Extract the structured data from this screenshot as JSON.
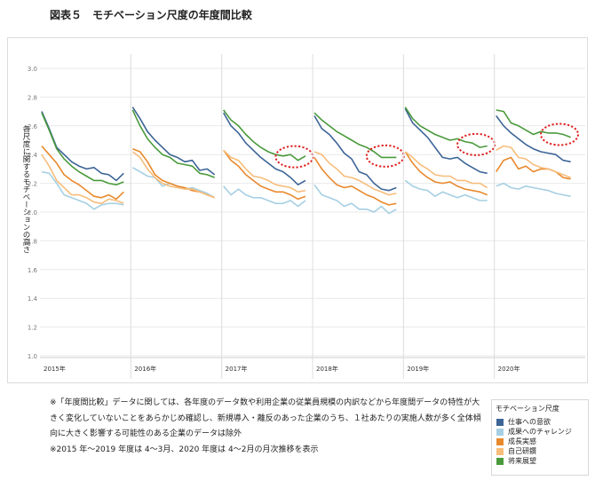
{
  "page": {
    "title": "図表５　モチベーション尺度の年度間比較",
    "notes": [
      "※「年度間比較」データに関しては、各年度のデータ数や利用企業の従業員規模の内訳などから年度間データの特性が大きく変化していないことをあらかじめ確認し、新規導入・離反のあった企業のうち、１社あたりの実施人数が多く全体傾向に大きく影響する可能性のある企業のデータは除外",
      "※2015 年～2019 年度は 4～3月、2020 年度は 4～2月の月次推移を表示"
    ]
  },
  "colors": {
    "仕事への意欲": "#3c6496",
    "成果へのチャレンジ": "#a6cfe3",
    "成長実感": "#e8892d",
    "自己研鑽": "#f7bd7b",
    "将来展望": "#4a9a3c",
    "highlight": "#e02020",
    "grid": "#e9e9e9"
  },
  "legend": {
    "title": "モチベーション尺度",
    "items": [
      "仕事への意欲",
      "成果へのチャレンジ",
      "成長実感",
      "自己研鑽",
      "将来展望"
    ]
  },
  "chart_data": {
    "type": "line",
    "ylabel": "各尺度に関するモチベーションの高さ",
    "ylim": [
      1.0,
      3.0
    ],
    "yticks": [
      "1.0",
      "1.2",
      "1.4",
      "1.6",
      "1.8",
      "2.0",
      "2.2",
      "2.4",
      "2.6",
      "2.8",
      "3.0"
    ],
    "grid": true,
    "legend_position": "bottom-right",
    "x_unit": "month index within fiscal year (1 = April)",
    "panels": [
      {
        "label": "2015年",
        "highlight": false,
        "series": [
          {
            "name": "仕事への意欲",
            "values": [
              2.7,
              2.58,
              2.45,
              2.4,
              2.35,
              2.32,
              2.3,
              2.31,
              2.27,
              2.26,
              2.22,
              2.27
            ]
          },
          {
            "name": "成果へのチャレンジ",
            "values": [
              2.28,
              2.27,
              2.2,
              2.12,
              2.1,
              2.08,
              2.06,
              2.02,
              2.05,
              2.06,
              2.06,
              2.05
            ]
          },
          {
            "name": "成長実感",
            "values": [
              2.46,
              2.4,
              2.34,
              2.26,
              2.22,
              2.19,
              2.15,
              2.11,
              2.1,
              2.12,
              2.09,
              2.14
            ]
          },
          {
            "name": "自己研鑽",
            "values": [
              2.4,
              2.32,
              2.22,
              2.17,
              2.12,
              2.12,
              2.1,
              2.07,
              2.06,
              2.09,
              2.08,
              2.06
            ]
          },
          {
            "name": "将来展望",
            "values": [
              2.69,
              2.57,
              2.44,
              2.37,
              2.32,
              2.28,
              2.25,
              2.22,
              2.22,
              2.2,
              2.19,
              2.21
            ]
          }
        ]
      },
      {
        "label": "2016年",
        "highlight": false,
        "series": [
          {
            "name": "仕事への意欲",
            "values": [
              2.73,
              2.65,
              2.56,
              2.5,
              2.45,
              2.4,
              2.38,
              2.35,
              2.36,
              2.29,
              2.3,
              2.26
            ]
          },
          {
            "name": "成果へのチャレンジ",
            "values": [
              2.31,
              2.28,
              2.25,
              2.24,
              2.18,
              2.2,
              2.18,
              2.16,
              2.17,
              2.15,
              2.13,
              2.1
            ]
          },
          {
            "name": "成長実感",
            "values": [
              2.44,
              2.42,
              2.35,
              2.26,
              2.22,
              2.2,
              2.18,
              2.17,
              2.15,
              2.14,
              2.12,
              2.1
            ]
          },
          {
            "name": "自己研鑽",
            "values": [
              2.42,
              2.38,
              2.3,
              2.24,
              2.2,
              2.18,
              2.17,
              2.16,
              2.16,
              2.14,
              2.12,
              2.1
            ]
          },
          {
            "name": "将来展望",
            "values": [
              2.71,
              2.6,
              2.51,
              2.45,
              2.4,
              2.38,
              2.34,
              2.33,
              2.32,
              2.27,
              2.26,
              2.24
            ]
          }
        ]
      },
      {
        "label": "2017年",
        "highlight": true,
        "series": [
          {
            "name": "仕事への意欲",
            "values": [
              2.69,
              2.6,
              2.55,
              2.48,
              2.43,
              2.38,
              2.34,
              2.3,
              2.28,
              2.24,
              2.19,
              2.22
            ]
          },
          {
            "name": "成果へのチャレンジ",
            "values": [
              2.18,
              2.12,
              2.16,
              2.12,
              2.1,
              2.1,
              2.08,
              2.06,
              2.06,
              2.08,
              2.04,
              2.08
            ]
          },
          {
            "name": "成長実感",
            "values": [
              2.43,
              2.36,
              2.32,
              2.26,
              2.22,
              2.18,
              2.16,
              2.14,
              2.14,
              2.12,
              2.09,
              2.11
            ]
          },
          {
            "name": "自己研鑽",
            "values": [
              2.43,
              2.38,
              2.36,
              2.3,
              2.25,
              2.24,
              2.22,
              2.19,
              2.18,
              2.17,
              2.14,
              2.15
            ]
          },
          {
            "name": "将来展望",
            "values": [
              2.71,
              2.64,
              2.6,
              2.54,
              2.49,
              2.45,
              2.42,
              2.4,
              2.39,
              2.4,
              2.36,
              2.39
            ]
          }
        ]
      },
      {
        "label": "2018年",
        "highlight": true,
        "series": [
          {
            "name": "仕事への意欲",
            "values": [
              2.67,
              2.58,
              2.54,
              2.48,
              2.41,
              2.37,
              2.28,
              2.26,
              2.2,
              2.16,
              2.15,
              2.17
            ]
          },
          {
            "name": "成果へのチャレンジ",
            "values": [
              2.19,
              2.12,
              2.1,
              2.08,
              2.04,
              2.06,
              2.02,
              2.02,
              2.0,
              2.04,
              1.99,
              2.02
            ]
          },
          {
            "name": "成長実感",
            "values": [
              2.38,
              2.3,
              2.24,
              2.19,
              2.17,
              2.18,
              2.15,
              2.12,
              2.1,
              2.07,
              2.05,
              2.06
            ]
          },
          {
            "name": "自己研鑽",
            "values": [
              2.42,
              2.4,
              2.34,
              2.3,
              2.25,
              2.24,
              2.22,
              2.19,
              2.16,
              2.14,
              2.12,
              2.13
            ]
          },
          {
            "name": "将来展望",
            "values": [
              2.69,
              2.64,
              2.6,
              2.56,
              2.53,
              2.5,
              2.47,
              2.45,
              2.42,
              2.38,
              2.38,
              2.38
            ]
          }
        ]
      },
      {
        "label": "2019年",
        "highlight": true,
        "series": [
          {
            "name": "仕事への意欲",
            "values": [
              2.72,
              2.62,
              2.57,
              2.52,
              2.45,
              2.38,
              2.37,
              2.38,
              2.34,
              2.31,
              2.28,
              2.27
            ]
          },
          {
            "name": "成果へのチャレンジ",
            "values": [
              2.22,
              2.18,
              2.16,
              2.15,
              2.11,
              2.14,
              2.12,
              2.1,
              2.12,
              2.1,
              2.08,
              2.08
            ]
          },
          {
            "name": "成長実感",
            "values": [
              2.42,
              2.34,
              2.28,
              2.24,
              2.21,
              2.2,
              2.21,
              2.18,
              2.16,
              2.15,
              2.14,
              2.12
            ]
          },
          {
            "name": "自己研鑽",
            "values": [
              2.42,
              2.38,
              2.33,
              2.3,
              2.26,
              2.25,
              2.25,
              2.22,
              2.22,
              2.2,
              2.2,
              2.17
            ]
          },
          {
            "name": "将来展望",
            "values": [
              2.73,
              2.65,
              2.6,
              2.57,
              2.54,
              2.52,
              2.5,
              2.51,
              2.49,
              2.48,
              2.45,
              2.46
            ]
          }
        ]
      },
      {
        "label": "2020年",
        "highlight": true,
        "series": [
          {
            "name": "仕事への意欲",
            "values": [
              2.67,
              2.6,
              2.55,
              2.51,
              2.47,
              2.44,
              2.42,
              2.41,
              2.4,
              2.36,
              2.35
            ]
          },
          {
            "name": "成果へのチャレンジ",
            "values": [
              2.18,
              2.2,
              2.17,
              2.16,
              2.18,
              2.17,
              2.16,
              2.15,
              2.13,
              2.12,
              2.11
            ]
          },
          {
            "name": "成長実感",
            "values": [
              2.28,
              2.36,
              2.38,
              2.3,
              2.32,
              2.28,
              2.3,
              2.3,
              2.28,
              2.24,
              2.23
            ]
          },
          {
            "name": "自己研鑽",
            "values": [
              2.43,
              2.46,
              2.45,
              2.38,
              2.37,
              2.33,
              2.31,
              2.3,
              2.28,
              2.26,
              2.24
            ]
          },
          {
            "name": "将来展望",
            "values": [
              2.71,
              2.7,
              2.62,
              2.6,
              2.57,
              2.54,
              2.56,
              2.55,
              2.55,
              2.54,
              2.52
            ]
          }
        ]
      }
    ]
  }
}
